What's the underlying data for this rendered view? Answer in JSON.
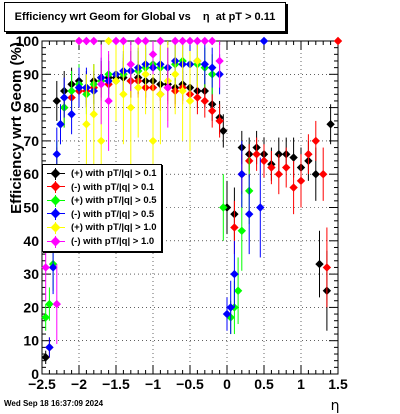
{
  "title": "Efficiency wrt Geom for Global vs    η  at pT > 0.11",
  "footer_date": "Wed Sep 18 16:37:09 2024",
  "chart_data": {
    "type": "scatter",
    "title": "Efficiency wrt Geom for Global vs    η  at pT > 0.11",
    "xlabel": "η",
    "ylabel": "Efficiency wrt Geom (%)",
    "xlim": [
      -2.5,
      1.5
    ],
    "ylim": [
      0,
      100
    ],
    "xticks": [
      -2.5,
      -2,
      -1.5,
      -1,
      -0.5,
      0,
      0.5,
      1,
      1.5
    ],
    "xtick_labels": [
      "−2.5",
      "−2",
      "−1.5",
      "−1",
      "−0.5",
      "0",
      "0.5",
      "1",
      "1.5"
    ],
    "yticks": [
      0,
      10,
      20,
      30,
      40,
      50,
      60,
      70,
      80,
      90,
      100
    ],
    "grid": true,
    "legend_position": "left-middle",
    "series": [
      {
        "name": "(+) with pT/|q| > 0.1",
        "color": "#000000",
        "points": [
          [
            -2.45,
            5
          ],
          [
            -2.3,
            82
          ],
          [
            -2.2,
            85
          ],
          [
            -2.1,
            87
          ],
          [
            -2.0,
            88
          ],
          [
            -1.9,
            86
          ],
          [
            -1.8,
            88
          ],
          [
            -1.7,
            89
          ],
          [
            -1.6,
            89
          ],
          [
            -1.5,
            89
          ],
          [
            -1.4,
            89
          ],
          [
            -1.3,
            88
          ],
          [
            -1.2,
            89
          ],
          [
            -1.1,
            88
          ],
          [
            -1.0,
            88
          ],
          [
            -0.9,
            87
          ],
          [
            -0.8,
            87
          ],
          [
            -0.7,
            86
          ],
          [
            -0.6,
            87
          ],
          [
            -0.5,
            86
          ],
          [
            -0.4,
            85
          ],
          [
            -0.3,
            85
          ],
          [
            -0.2,
            81
          ],
          [
            -0.1,
            77
          ],
          [
            -0.05,
            73
          ],
          [
            0.0,
            50
          ],
          [
            0.1,
            48
          ],
          [
            0.2,
            68
          ],
          [
            0.3,
            66
          ],
          [
            0.4,
            68
          ],
          [
            0.5,
            66
          ],
          [
            0.6,
            63
          ],
          [
            0.7,
            66
          ],
          [
            0.8,
            66
          ],
          [
            0.9,
            65
          ],
          [
            1.0,
            62
          ],
          [
            1.1,
            64
          ],
          [
            1.2,
            60
          ],
          [
            1.25,
            33
          ],
          [
            1.35,
            25
          ],
          [
            1.4,
            75
          ]
        ],
        "errors": [
          2,
          6,
          6,
          5,
          5,
          5,
          5,
          5,
          5,
          5,
          5,
          5,
          5,
          5,
          5,
          5,
          5,
          5,
          5,
          5,
          5,
          5,
          5,
          5,
          5,
          8,
          8,
          5,
          5,
          5,
          5,
          5,
          5,
          5,
          6,
          6,
          6,
          8,
          10,
          12,
          6
        ]
      },
      {
        "name": "(-) with pT/|q| > 0.1",
        "color": "#ff0000",
        "points": [
          [
            -2.4,
            8
          ],
          [
            -2.3,
            60
          ],
          [
            -2.2,
            80
          ],
          [
            -2.1,
            83
          ],
          [
            -2.0,
            85
          ],
          [
            -1.9,
            85
          ],
          [
            -1.8,
            86
          ],
          [
            -1.7,
            88
          ],
          [
            -1.6,
            87
          ],
          [
            -1.5,
            88
          ],
          [
            -1.4,
            90
          ],
          [
            -1.3,
            88
          ],
          [
            -1.2,
            88
          ],
          [
            -1.1,
            86
          ],
          [
            -1.0,
            86
          ],
          [
            -0.9,
            84
          ],
          [
            -0.8,
            86
          ],
          [
            -0.7,
            85
          ],
          [
            -0.6,
            86
          ],
          [
            -0.5,
            84
          ],
          [
            -0.4,
            83
          ],
          [
            -0.3,
            82
          ],
          [
            -0.2,
            79
          ],
          [
            -0.1,
            76
          ],
          [
            0.1,
            44
          ],
          [
            0.2,
            60
          ],
          [
            0.3,
            64
          ],
          [
            0.4,
            66
          ],
          [
            0.5,
            64
          ],
          [
            0.6,
            62
          ],
          [
            0.7,
            60
          ],
          [
            0.8,
            62
          ],
          [
            0.9,
            56
          ],
          [
            1.0,
            58
          ],
          [
            1.1,
            66
          ],
          [
            1.2,
            70
          ],
          [
            1.3,
            60
          ],
          [
            1.35,
            32
          ],
          [
            1.5,
            100
          ]
        ],
        "errors": [
          3,
          8,
          6,
          5,
          5,
          5,
          5,
          5,
          5,
          5,
          5,
          5,
          5,
          5,
          5,
          5,
          5,
          5,
          5,
          5,
          5,
          5,
          5,
          5,
          8,
          6,
          5,
          5,
          5,
          5,
          6,
          6,
          8,
          8,
          6,
          6,
          8,
          12,
          0
        ]
      },
      {
        "name": "(+) with pT/|q| > 0.5",
        "color": "#00ff00",
        "points": [
          [
            -2.45,
            17
          ],
          [
            -2.4,
            21
          ],
          [
            -2.35,
            33
          ],
          [
            -2.3,
            62
          ],
          [
            -2.25,
            75
          ],
          [
            -2.2,
            80
          ],
          [
            -2.1,
            85
          ],
          [
            -2.0,
            87
          ],
          [
            -1.9,
            84
          ],
          [
            -1.8,
            87
          ],
          [
            -1.7,
            88
          ],
          [
            -1.6,
            90
          ],
          [
            -1.5,
            88
          ],
          [
            -1.4,
            90
          ],
          [
            -1.3,
            91
          ],
          [
            -1.2,
            91
          ],
          [
            -1.1,
            92
          ],
          [
            -1.0,
            93
          ],
          [
            -0.9,
            92
          ],
          [
            -0.8,
            92
          ],
          [
            -0.7,
            93
          ],
          [
            -0.6,
            94
          ],
          [
            -0.5,
            93
          ],
          [
            -0.4,
            93
          ],
          [
            -0.3,
            92
          ],
          [
            -0.2,
            90
          ],
          [
            -0.05,
            50
          ],
          [
            0.05,
            17
          ],
          [
            0.1,
            20
          ],
          [
            0.15,
            25
          ],
          [
            0.2,
            43
          ],
          [
            0.3,
            55
          ]
        ],
        "errors": [
          4,
          5,
          8,
          8,
          6,
          6,
          6,
          6,
          6,
          6,
          6,
          6,
          6,
          6,
          6,
          6,
          6,
          6,
          6,
          6,
          6,
          6,
          6,
          6,
          6,
          6,
          10,
          5,
          8,
          10,
          12,
          10
        ]
      },
      {
        "name": "(-) with pT/|q| > 0.5",
        "color": "#0000ff",
        "points": [
          [
            -2.4,
            8
          ],
          [
            -2.35,
            32
          ],
          [
            -2.3,
            66
          ],
          [
            -2.25,
            75
          ],
          [
            -2.2,
            83
          ],
          [
            -2.1,
            78
          ],
          [
            -2.0,
            86
          ],
          [
            -1.9,
            86
          ],
          [
            -1.8,
            85
          ],
          [
            -1.7,
            89
          ],
          [
            -1.6,
            88
          ],
          [
            -1.5,
            90
          ],
          [
            -1.4,
            91
          ],
          [
            -1.3,
            91
          ],
          [
            -1.2,
            92
          ],
          [
            -1.1,
            93
          ],
          [
            -1.0,
            92
          ],
          [
            -0.9,
            93
          ],
          [
            -0.8,
            92
          ],
          [
            -0.7,
            94
          ],
          [
            -0.6,
            93
          ],
          [
            -0.5,
            93
          ],
          [
            -0.4,
            94
          ],
          [
            -0.3,
            93
          ],
          [
            -0.2,
            92
          ],
          [
            -0.1,
            90
          ],
          [
            0.0,
            18
          ],
          [
            0.05,
            20
          ],
          [
            0.1,
            30
          ],
          [
            0.2,
            60
          ],
          [
            0.3,
            48
          ],
          [
            0.45,
            50
          ],
          [
            0.5,
            100
          ]
        ],
        "errors": [
          3,
          8,
          8,
          6,
          6,
          6,
          6,
          6,
          6,
          6,
          6,
          6,
          6,
          6,
          6,
          6,
          6,
          6,
          6,
          6,
          6,
          6,
          6,
          6,
          6,
          6,
          5,
          8,
          10,
          10,
          12,
          15,
          0
        ]
      },
      {
        "name": "(+) with pT/|q| > 1.0",
        "color": "#ffff00",
        "points": [
          [
            -2.0,
            100
          ],
          [
            -1.9,
            75
          ],
          [
            -1.8,
            78
          ],
          [
            -1.7,
            70
          ],
          [
            -1.6,
            100
          ],
          [
            -1.5,
            88
          ],
          [
            -1.4,
            84
          ],
          [
            -1.3,
            80
          ],
          [
            -1.2,
            86
          ],
          [
            -1.1,
            90
          ],
          [
            -1.0,
            70
          ],
          [
            -0.9,
            84
          ],
          [
            -0.8,
            88
          ],
          [
            -0.7,
            90
          ],
          [
            -0.6,
            85
          ],
          [
            -0.5,
            82
          ],
          [
            -0.4,
            94
          ]
        ],
        "errors": [
          0,
          15,
          15,
          18,
          0,
          12,
          15,
          18,
          15,
          12,
          20,
          15,
          12,
          12,
          15,
          15,
          8
        ]
      },
      {
        "name": "(-) with pT/|q| > 1.0",
        "color": "#ff00ff",
        "points": [
          [
            -2.45,
            32
          ],
          [
            -2.3,
            21
          ],
          [
            -2.0,
            100
          ],
          [
            -1.9,
            100
          ],
          [
            -1.8,
            100
          ],
          [
            -1.7,
            87
          ],
          [
            -1.6,
            82
          ],
          [
            -1.5,
            100
          ],
          [
            -1.4,
            100
          ],
          [
            -1.3,
            93
          ],
          [
            -1.2,
            100
          ],
          [
            -1.1,
            100
          ],
          [
            -1.0,
            96
          ],
          [
            -0.9,
            100
          ],
          [
            -0.8,
            86
          ],
          [
            -0.7,
            100
          ],
          [
            -0.6,
            100
          ],
          [
            -0.5,
            100
          ],
          [
            -0.4,
            100
          ],
          [
            -0.3,
            100
          ],
          [
            -0.2,
            100
          ],
          [
            -0.1,
            94
          ]
        ],
        "errors": [
          10,
          12,
          0,
          0,
          0,
          12,
          15,
          0,
          0,
          8,
          0,
          0,
          6,
          0,
          12,
          0,
          0,
          0,
          0,
          0,
          0,
          8
        ]
      }
    ]
  }
}
